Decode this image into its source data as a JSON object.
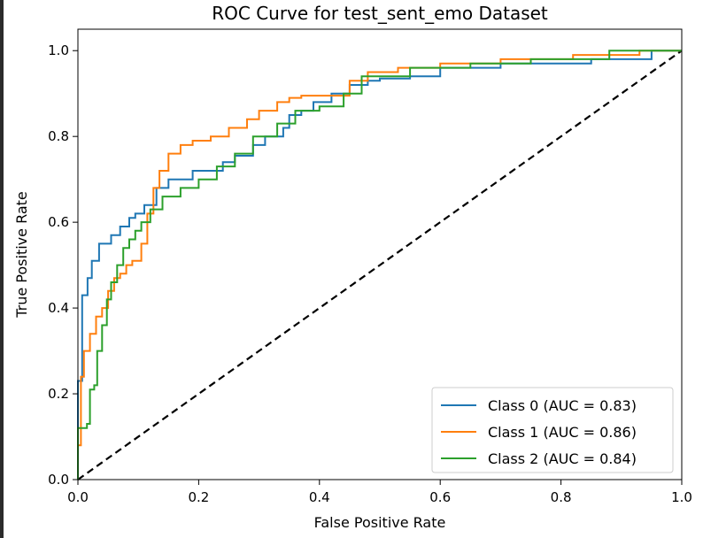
{
  "chart_data": {
    "type": "line",
    "title": "ROC Curve for test_sent_emo Dataset",
    "xlabel": "False Positive Rate",
    "ylabel": "True Positive Rate",
    "xlim": [
      0.0,
      1.0
    ],
    "ylim": [
      0.0,
      1.05
    ],
    "xticks": [
      "0.0",
      "0.2",
      "0.4",
      "0.6",
      "0.8",
      "1.0"
    ],
    "yticks": [
      "0.0",
      "0.2",
      "0.4",
      "0.6",
      "0.8",
      "1.0"
    ],
    "grid": false,
    "legend_position": "lower-right",
    "series": [
      {
        "name": "Class 0 (AUC = 0.83)",
        "color": "#1f77b4",
        "x": [
          0.0,
          0.0,
          0.007,
          0.007,
          0.016,
          0.016,
          0.023,
          0.023,
          0.035,
          0.035,
          0.055,
          0.055,
          0.07,
          0.07,
          0.085,
          0.085,
          0.095,
          0.095,
          0.11,
          0.11,
          0.13,
          0.13,
          0.15,
          0.15,
          0.19,
          0.19,
          0.24,
          0.24,
          0.26,
          0.26,
          0.29,
          0.29,
          0.31,
          0.31,
          0.34,
          0.34,
          0.35,
          0.35,
          0.37,
          0.37,
          0.39,
          0.39,
          0.42,
          0.42,
          0.45,
          0.45,
          0.48,
          0.48,
          0.5,
          0.5,
          0.55,
          0.55,
          0.57,
          0.57,
          0.6,
          0.6,
          0.7,
          0.7,
          0.85,
          0.85,
          0.95,
          0.95,
          1.0
        ],
        "y": [
          0.0,
          0.23,
          0.23,
          0.43,
          0.43,
          0.47,
          0.47,
          0.51,
          0.51,
          0.55,
          0.55,
          0.57,
          0.57,
          0.59,
          0.59,
          0.61,
          0.61,
          0.62,
          0.62,
          0.64,
          0.64,
          0.68,
          0.68,
          0.7,
          0.7,
          0.72,
          0.72,
          0.74,
          0.74,
          0.755,
          0.755,
          0.78,
          0.78,
          0.8,
          0.8,
          0.82,
          0.82,
          0.85,
          0.85,
          0.86,
          0.86,
          0.88,
          0.88,
          0.9,
          0.9,
          0.92,
          0.92,
          0.93,
          0.93,
          0.935,
          0.935,
          0.94,
          0.94,
          0.94,
          0.94,
          0.96,
          0.96,
          0.97,
          0.97,
          0.98,
          0.98,
          1.0,
          1.0
        ]
      },
      {
        "name": "Class 1 (AUC = 0.86)",
        "color": "#ff7f0e",
        "x": [
          0.0,
          0.0,
          0.005,
          0.005,
          0.01,
          0.01,
          0.02,
          0.02,
          0.03,
          0.03,
          0.04,
          0.04,
          0.05,
          0.05,
          0.06,
          0.06,
          0.07,
          0.07,
          0.08,
          0.08,
          0.09,
          0.09,
          0.105,
          0.105,
          0.115,
          0.115,
          0.125,
          0.125,
          0.135,
          0.135,
          0.15,
          0.15,
          0.17,
          0.17,
          0.19,
          0.19,
          0.22,
          0.22,
          0.25,
          0.25,
          0.28,
          0.28,
          0.3,
          0.3,
          0.33,
          0.33,
          0.35,
          0.35,
          0.37,
          0.37,
          0.45,
          0.45,
          0.48,
          0.48,
          0.53,
          0.53,
          0.6,
          0.6,
          0.7,
          0.7,
          0.82,
          0.82,
          0.93,
          0.93,
          1.0
        ],
        "y": [
          0.0,
          0.08,
          0.08,
          0.24,
          0.24,
          0.3,
          0.3,
          0.34,
          0.34,
          0.38,
          0.38,
          0.4,
          0.4,
          0.44,
          0.44,
          0.47,
          0.47,
          0.48,
          0.48,
          0.5,
          0.5,
          0.51,
          0.51,
          0.55,
          0.55,
          0.62,
          0.62,
          0.68,
          0.68,
          0.72,
          0.72,
          0.76,
          0.76,
          0.78,
          0.78,
          0.79,
          0.79,
          0.8,
          0.8,
          0.82,
          0.82,
          0.84,
          0.84,
          0.86,
          0.86,
          0.88,
          0.88,
          0.89,
          0.89,
          0.895,
          0.895,
          0.93,
          0.93,
          0.95,
          0.95,
          0.96,
          0.96,
          0.97,
          0.97,
          0.98,
          0.98,
          0.99,
          0.99,
          1.0,
          1.0
        ]
      },
      {
        "name": "Class 2 (AUC = 0.84)",
        "color": "#2ca02c",
        "x": [
          0.0,
          0.0,
          0.015,
          0.015,
          0.02,
          0.02,
          0.027,
          0.027,
          0.032,
          0.032,
          0.04,
          0.04,
          0.048,
          0.048,
          0.055,
          0.055,
          0.065,
          0.065,
          0.075,
          0.075,
          0.085,
          0.085,
          0.095,
          0.095,
          0.105,
          0.105,
          0.12,
          0.12,
          0.14,
          0.14,
          0.17,
          0.17,
          0.2,
          0.2,
          0.23,
          0.23,
          0.26,
          0.26,
          0.29,
          0.29,
          0.33,
          0.33,
          0.36,
          0.36,
          0.4,
          0.4,
          0.44,
          0.44,
          0.47,
          0.47,
          0.55,
          0.55,
          0.65,
          0.65,
          0.75,
          0.75,
          0.88,
          0.88,
          1.0
        ],
        "y": [
          0.0,
          0.12,
          0.12,
          0.13,
          0.13,
          0.21,
          0.21,
          0.22,
          0.22,
          0.3,
          0.3,
          0.36,
          0.36,
          0.42,
          0.42,
          0.46,
          0.46,
          0.5,
          0.5,
          0.54,
          0.54,
          0.56,
          0.56,
          0.58,
          0.58,
          0.6,
          0.6,
          0.63,
          0.63,
          0.66,
          0.66,
          0.68,
          0.68,
          0.7,
          0.7,
          0.73,
          0.73,
          0.76,
          0.76,
          0.8,
          0.8,
          0.83,
          0.83,
          0.86,
          0.86,
          0.87,
          0.87,
          0.9,
          0.9,
          0.94,
          0.94,
          0.96,
          0.96,
          0.97,
          0.97,
          0.98,
          0.98,
          1.0,
          1.0
        ]
      }
    ],
    "reference_line": {
      "x": [
        0.0,
        1.0
      ],
      "y": [
        0.0,
        1.0
      ],
      "style": "dashed",
      "color": "#000000"
    }
  }
}
